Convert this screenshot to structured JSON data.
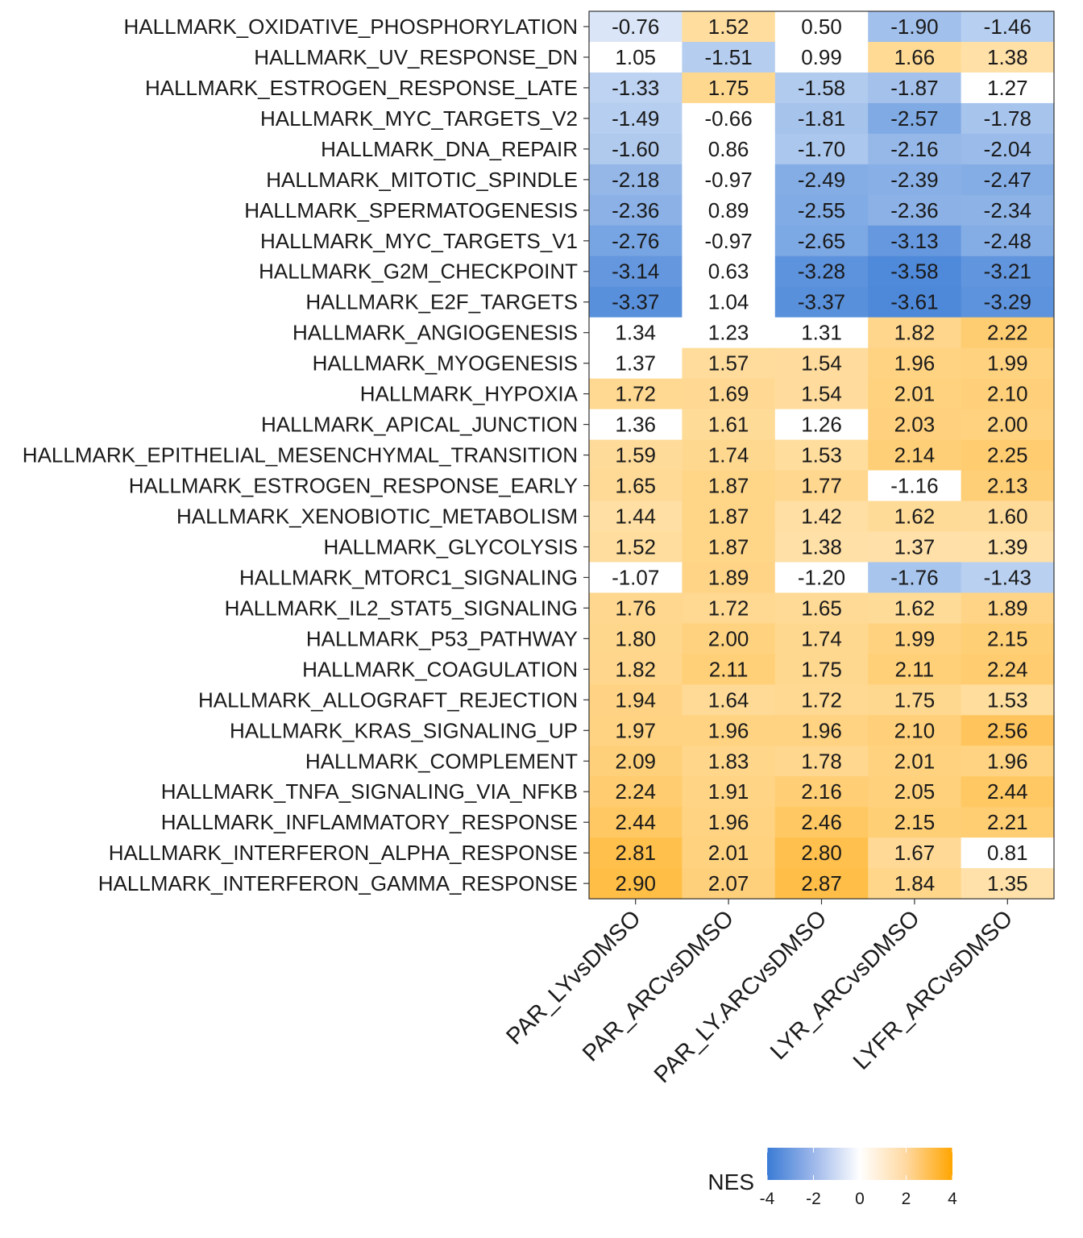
{
  "chart_data": {
    "type": "heatmap",
    "rows": [
      "HALLMARK_OXIDATIVE_PHOSPHORYLATION",
      "HALLMARK_UV_RESPONSE_DN",
      "HALLMARK_ESTROGEN_RESPONSE_LATE",
      "HALLMARK_MYC_TARGETS_V2",
      "HALLMARK_DNA_REPAIR",
      "HALLMARK_MITOTIC_SPINDLE",
      "HALLMARK_SPERMATOGENESIS",
      "HALLMARK_MYC_TARGETS_V1",
      "HALLMARK_G2M_CHECKPOINT",
      "HALLMARK_E2F_TARGETS",
      "HALLMARK_ANGIOGENESIS",
      "HALLMARK_MYOGENESIS",
      "HALLMARK_HYPOXIA",
      "HALLMARK_APICAL_JUNCTION",
      "HALLMARK_EPITHELIAL_MESENCHYMAL_TRANSITION",
      "HALLMARK_ESTROGEN_RESPONSE_EARLY",
      "HALLMARK_XENOBIOTIC_METABOLISM",
      "HALLMARK_GLYCOLYSIS",
      "HALLMARK_MTORC1_SIGNALING",
      "HALLMARK_IL2_STAT5_SIGNALING",
      "HALLMARK_P53_PATHWAY",
      "HALLMARK_COAGULATION",
      "HALLMARK_ALLOGRAFT_REJECTION",
      "HALLMARK_KRAS_SIGNALING_UP",
      "HALLMARK_COMPLEMENT",
      "HALLMARK_TNFA_SIGNALING_VIA_NFKB",
      "HALLMARK_INFLAMMATORY_RESPONSE",
      "HALLMARK_INTERFERON_ALPHA_RESPONSE",
      "HALLMARK_INTERFERON_GAMMA_RESPONSE"
    ],
    "columns": [
      "PAR_LYvsDMSO",
      "PAR_ARCvsDMSO",
      "PAR_LY.ARCvsDMSO",
      "LYR_ARCvsDMSO",
      "LYFR_ARCvsDMSO"
    ],
    "values": [
      [
        -0.76,
        1.52,
        0.5,
        -1.9,
        -1.46
      ],
      [
        1.05,
        -1.51,
        0.99,
        1.66,
        1.38
      ],
      [
        -1.33,
        1.75,
        -1.58,
        -1.87,
        1.27
      ],
      [
        -1.49,
        -0.66,
        -1.81,
        -2.57,
        -1.78
      ],
      [
        -1.6,
        0.86,
        -1.7,
        -2.16,
        -2.04
      ],
      [
        -2.18,
        -0.97,
        -2.49,
        -2.39,
        -2.47
      ],
      [
        -2.36,
        0.89,
        -2.55,
        -2.36,
        -2.34
      ],
      [
        -2.76,
        -0.97,
        -2.65,
        -3.13,
        -2.48
      ],
      [
        -3.14,
        0.63,
        -3.28,
        -3.58,
        -3.21
      ],
      [
        -3.37,
        1.04,
        -3.37,
        -3.61,
        -3.29
      ],
      [
        1.34,
        1.23,
        1.31,
        1.82,
        2.22
      ],
      [
        1.37,
        1.57,
        1.54,
        1.96,
        1.99
      ],
      [
        1.72,
        1.69,
        1.54,
        2.01,
        2.1
      ],
      [
        1.36,
        1.61,
        1.26,
        2.03,
        2.0
      ],
      [
        1.59,
        1.74,
        1.53,
        2.14,
        2.25
      ],
      [
        1.65,
        1.87,
        1.77,
        -1.16,
        2.13
      ],
      [
        1.44,
        1.87,
        1.42,
        1.62,
        1.6
      ],
      [
        1.52,
        1.87,
        1.38,
        1.37,
        1.39
      ],
      [
        -1.07,
        1.89,
        -1.2,
        -1.76,
        -1.43
      ],
      [
        1.76,
        1.72,
        1.65,
        1.62,
        1.89
      ],
      [
        1.8,
        2.0,
        1.74,
        1.99,
        2.15
      ],
      [
        1.82,
        2.11,
        1.75,
        2.11,
        2.24
      ],
      [
        1.94,
        1.64,
        1.72,
        1.75,
        1.53
      ],
      [
        1.97,
        1.96,
        1.96,
        2.1,
        2.56
      ],
      [
        2.09,
        1.83,
        1.78,
        2.01,
        1.96
      ],
      [
        2.24,
        1.91,
        2.16,
        2.05,
        2.44
      ],
      [
        2.44,
        1.96,
        2.46,
        2.15,
        2.21
      ],
      [
        2.81,
        2.01,
        2.8,
        1.67,
        0.81
      ],
      [
        2.9,
        2.07,
        2.87,
        1.84,
        1.35
      ]
    ],
    "white_cells": [
      [
        0,
        2
      ],
      [
        1,
        0
      ],
      [
        1,
        2
      ],
      [
        2,
        4
      ],
      [
        3,
        1
      ],
      [
        4,
        1
      ],
      [
        5,
        1
      ],
      [
        6,
        1
      ],
      [
        7,
        1
      ],
      [
        8,
        1
      ],
      [
        9,
        1
      ],
      [
        10,
        0
      ],
      [
        10,
        1
      ],
      [
        10,
        2
      ],
      [
        11,
        0
      ],
      [
        13,
        0
      ],
      [
        13,
        2
      ],
      [
        15,
        3
      ],
      [
        18,
        0
      ],
      [
        18,
        2
      ],
      [
        27,
        4
      ]
    ],
    "color_scale": {
      "low": "#3a7bd5",
      "mid": "#ffffff",
      "high": "#ffa500",
      "domain": [
        -4,
        0,
        4
      ]
    },
    "legend": {
      "title": "NES",
      "ticks": [
        -4,
        -2,
        0,
        2,
        4
      ],
      "placement": "bottom"
    },
    "grid": false
  }
}
